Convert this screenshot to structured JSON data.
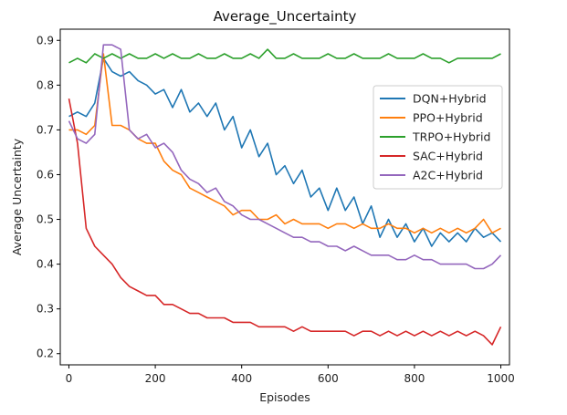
{
  "chart_data": {
    "type": "line",
    "title": "Average_Uncertainty",
    "xlabel": "Episodes",
    "ylabel": "Average Uncertainty",
    "xlim": [
      -20,
      1020
    ],
    "ylim": [
      0.175,
      0.925
    ],
    "xticks": [
      0,
      200,
      400,
      600,
      800,
      1000
    ],
    "yticks": [
      0.2,
      0.3,
      0.4,
      0.5,
      0.6,
      0.7,
      0.8,
      0.9
    ],
    "grid": false,
    "legend_position": "center-right",
    "series": [
      {
        "name": "DQN+Hybrid",
        "color": "#1f77b4",
        "x": [
          0,
          20,
          40,
          60,
          80,
          100,
          120,
          140,
          160,
          180,
          200,
          220,
          240,
          260,
          280,
          300,
          320,
          340,
          360,
          380,
          400,
          420,
          440,
          460,
          480,
          500,
          520,
          540,
          560,
          580,
          600,
          620,
          640,
          660,
          680,
          700,
          720,
          740,
          760,
          780,
          800,
          820,
          840,
          860,
          880,
          900,
          920,
          940,
          960,
          980,
          1000
        ],
        "values": [
          0.73,
          0.74,
          0.73,
          0.76,
          0.86,
          0.83,
          0.82,
          0.83,
          0.81,
          0.8,
          0.78,
          0.79,
          0.75,
          0.79,
          0.74,
          0.76,
          0.73,
          0.76,
          0.7,
          0.73,
          0.66,
          0.7,
          0.64,
          0.67,
          0.6,
          0.62,
          0.58,
          0.61,
          0.55,
          0.57,
          0.52,
          0.57,
          0.52,
          0.55,
          0.49,
          0.53,
          0.46,
          0.5,
          0.46,
          0.49,
          0.45,
          0.48,
          0.44,
          0.47,
          0.45,
          0.47,
          0.45,
          0.48,
          0.46,
          0.47,
          0.45
        ]
      },
      {
        "name": "PPO+Hybrid",
        "color": "#ff7f0e",
        "x": [
          0,
          20,
          40,
          60,
          80,
          100,
          120,
          140,
          160,
          180,
          200,
          220,
          240,
          260,
          280,
          300,
          320,
          340,
          360,
          380,
          400,
          420,
          440,
          460,
          480,
          500,
          520,
          540,
          560,
          580,
          600,
          620,
          640,
          660,
          680,
          700,
          720,
          740,
          760,
          780,
          800,
          820,
          840,
          860,
          880,
          900,
          920,
          940,
          960,
          980,
          1000
        ],
        "values": [
          0.7,
          0.7,
          0.69,
          0.71,
          0.87,
          0.71,
          0.71,
          0.7,
          0.68,
          0.67,
          0.67,
          0.63,
          0.61,
          0.6,
          0.57,
          0.56,
          0.55,
          0.54,
          0.53,
          0.51,
          0.52,
          0.52,
          0.5,
          0.5,
          0.51,
          0.49,
          0.5,
          0.49,
          0.49,
          0.49,
          0.48,
          0.49,
          0.49,
          0.48,
          0.49,
          0.48,
          0.48,
          0.49,
          0.48,
          0.48,
          0.47,
          0.48,
          0.47,
          0.48,
          0.47,
          0.48,
          0.47,
          0.48,
          0.5,
          0.47,
          0.48
        ]
      },
      {
        "name": "TRPO+Hybrid",
        "color": "#2ca02c",
        "x": [
          0,
          20,
          40,
          60,
          80,
          100,
          120,
          140,
          160,
          180,
          200,
          220,
          240,
          260,
          280,
          300,
          320,
          340,
          360,
          380,
          400,
          420,
          440,
          460,
          480,
          500,
          520,
          540,
          560,
          580,
          600,
          620,
          640,
          660,
          680,
          700,
          720,
          740,
          760,
          780,
          800,
          820,
          840,
          860,
          880,
          900,
          920,
          940,
          960,
          980,
          1000
        ],
        "values": [
          0.85,
          0.86,
          0.85,
          0.87,
          0.86,
          0.87,
          0.86,
          0.87,
          0.86,
          0.86,
          0.87,
          0.86,
          0.87,
          0.86,
          0.86,
          0.87,
          0.86,
          0.86,
          0.87,
          0.86,
          0.86,
          0.87,
          0.86,
          0.88,
          0.86,
          0.86,
          0.87,
          0.86,
          0.86,
          0.86,
          0.87,
          0.86,
          0.86,
          0.87,
          0.86,
          0.86,
          0.86,
          0.87,
          0.86,
          0.86,
          0.86,
          0.87,
          0.86,
          0.86,
          0.85,
          0.86,
          0.86,
          0.86,
          0.86,
          0.86,
          0.87
        ]
      },
      {
        "name": "SAC+Hybrid",
        "color": "#d62728",
        "x": [
          0,
          20,
          40,
          60,
          80,
          100,
          120,
          140,
          160,
          180,
          200,
          220,
          240,
          260,
          280,
          300,
          320,
          340,
          360,
          380,
          400,
          420,
          440,
          460,
          480,
          500,
          520,
          540,
          560,
          580,
          600,
          620,
          640,
          660,
          680,
          700,
          720,
          740,
          760,
          780,
          800,
          820,
          840,
          860,
          880,
          900,
          920,
          940,
          960,
          980,
          1000
        ],
        "values": [
          0.77,
          0.67,
          0.48,
          0.44,
          0.42,
          0.4,
          0.37,
          0.35,
          0.34,
          0.33,
          0.33,
          0.31,
          0.31,
          0.3,
          0.29,
          0.29,
          0.28,
          0.28,
          0.28,
          0.27,
          0.27,
          0.27,
          0.26,
          0.26,
          0.26,
          0.26,
          0.25,
          0.26,
          0.25,
          0.25,
          0.25,
          0.25,
          0.25,
          0.24,
          0.25,
          0.25,
          0.24,
          0.25,
          0.24,
          0.25,
          0.24,
          0.25,
          0.24,
          0.25,
          0.24,
          0.25,
          0.24,
          0.25,
          0.24,
          0.22,
          0.26
        ]
      },
      {
        "name": "A2C+Hybrid",
        "color": "#9467bd",
        "x": [
          0,
          20,
          40,
          60,
          80,
          100,
          120,
          140,
          160,
          180,
          200,
          220,
          240,
          260,
          280,
          300,
          320,
          340,
          360,
          380,
          400,
          420,
          440,
          460,
          480,
          500,
          520,
          540,
          560,
          580,
          600,
          620,
          640,
          660,
          680,
          700,
          720,
          740,
          760,
          780,
          800,
          820,
          840,
          860,
          880,
          900,
          920,
          940,
          960,
          980,
          1000
        ],
        "values": [
          0.72,
          0.68,
          0.67,
          0.69,
          0.89,
          0.89,
          0.88,
          0.7,
          0.68,
          0.69,
          0.66,
          0.67,
          0.65,
          0.61,
          0.59,
          0.58,
          0.56,
          0.57,
          0.54,
          0.53,
          0.51,
          0.5,
          0.5,
          0.49,
          0.48,
          0.47,
          0.46,
          0.46,
          0.45,
          0.45,
          0.44,
          0.44,
          0.43,
          0.44,
          0.43,
          0.42,
          0.42,
          0.42,
          0.41,
          0.41,
          0.42,
          0.41,
          0.41,
          0.4,
          0.4,
          0.4,
          0.4,
          0.39,
          0.39,
          0.4,
          0.42
        ]
      }
    ]
  }
}
